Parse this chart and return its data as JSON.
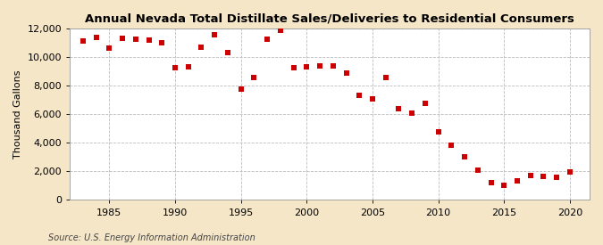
{
  "title": "Annual Nevada Total Distillate Sales/Deliveries to Residential Consumers",
  "ylabel": "Thousand Gallons",
  "source": "Source: U.S. Energy Information Administration",
  "fig_background_color": "#f5e6c8",
  "plot_background_color": "#ffffff",
  "marker_color": "#cc0000",
  "years": [
    1983,
    1984,
    1985,
    1986,
    1987,
    1988,
    1989,
    1990,
    1991,
    1992,
    1993,
    1994,
    1995,
    1996,
    1997,
    1998,
    1999,
    2000,
    2001,
    2002,
    2003,
    2004,
    2005,
    2006,
    2007,
    2008,
    2009,
    2010,
    2011,
    2012,
    2013,
    2014,
    2015,
    2016,
    2017,
    2018,
    2019,
    2020
  ],
  "values": [
    11100,
    11350,
    10650,
    11300,
    11250,
    11200,
    11000,
    9250,
    9300,
    10700,
    11550,
    10300,
    7750,
    8550,
    11250,
    11900,
    9250,
    9300,
    9350,
    9350,
    8900,
    7300,
    7100,
    8550,
    6400,
    6050,
    6750,
    4750,
    3850,
    3000,
    2100,
    1200,
    1050,
    1350,
    1700,
    1650,
    1600,
    1950
  ],
  "xlim": [
    1982,
    2021.5
  ],
  "ylim": [
    0,
    12000
  ],
  "yticks": [
    0,
    2000,
    4000,
    6000,
    8000,
    10000,
    12000
  ],
  "xticks": [
    1985,
    1990,
    1995,
    2000,
    2005,
    2010,
    2015,
    2020
  ],
  "grid_color": "#bbbbbb",
  "marker_size": 4.5,
  "title_fontsize": 9.5,
  "axis_fontsize": 8,
  "source_fontsize": 7
}
